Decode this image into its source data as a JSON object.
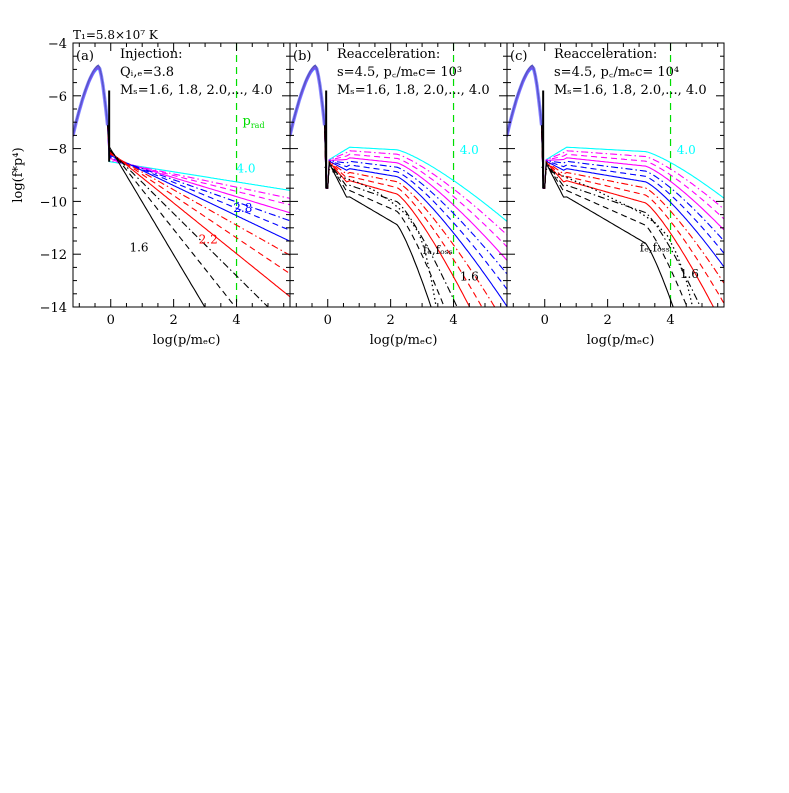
{
  "figure": {
    "top_label": "T₁=5.8×10⁷ K",
    "ylabel": "log(f*p⁴)",
    "colors": {
      "cyan": "#00ffff",
      "magenta": "#ff00ff",
      "blue": "#0000ff",
      "red": "#ff0000",
      "black": "#000000",
      "green": "#00dd00"
    }
  },
  "chart_data": [
    {
      "type": "line",
      "panel_label": "(a)",
      "title_line1": "Injection:",
      "title_line2": "Qᵢ,ₑ=3.8",
      "title_line3": "Mₛ=1.6, 1.8, 2.0,..., 4.0",
      "xlabel": "log(p/mₑc)",
      "xlim": [
        -1.2,
        5.7
      ],
      "ylim": [
        -14,
        -4
      ],
      "x_ticks": [
        0,
        2,
        4
      ],
      "y_ticks": [
        -14,
        -12,
        -10,
        -8,
        -6,
        -4
      ],
      "vline_x": 4,
      "vline_label": "p_rad",
      "annotations": [
        {
          "text": "4.0",
          "x": 4.3,
          "y": -8.9,
          "color": "cyan"
        },
        {
          "text": "2.8",
          "x": 4.2,
          "y": -10.4,
          "color": "blue"
        },
        {
          "text": "2.2",
          "x": 3.1,
          "y": -11.6,
          "color": "red"
        },
        {
          "text": "1.6",
          "x": 0.9,
          "y": -11.9,
          "color": "black"
        }
      ],
      "series": [
        {
          "mach": 4.0,
          "color": "cyan",
          "style": "solid",
          "slope": -0.19
        },
        {
          "mach": 3.8,
          "color": "magenta",
          "style": "dashdot",
          "slope": -0.25
        },
        {
          "mach": 3.6,
          "color": "magenta",
          "style": "dashed",
          "slope": -0.3
        },
        {
          "mach": 3.4,
          "color": "magenta",
          "style": "solid",
          "slope": -0.36
        },
        {
          "mach": 3.2,
          "color": "blue",
          "style": "dashdot",
          "slope": -0.42
        },
        {
          "mach": 3.0,
          "color": "blue",
          "style": "dashed",
          "slope": -0.49
        },
        {
          "mach": 2.8,
          "color": "blue",
          "style": "solid",
          "slope": -0.57
        },
        {
          "mach": 2.6,
          "color": "red",
          "style": "dashdot",
          "slope": -0.67
        },
        {
          "mach": 2.4,
          "color": "red",
          "style": "dashed",
          "slope": -0.8
        },
        {
          "mach": 2.2,
          "color": "red",
          "style": "solid",
          "slope": -0.96
        },
        {
          "mach": 2.0,
          "color": "black",
          "style": "dashdot",
          "slope": -1.18
        },
        {
          "mach": 1.8,
          "color": "black",
          "style": "dashed",
          "slope": -1.5
        },
        {
          "mach": 1.6,
          "color": "black",
          "style": "solid",
          "slope": -2.0
        }
      ]
    },
    {
      "type": "line",
      "panel_label": "(b)",
      "title_line1": "Reacceleration:",
      "title_line2": "s=4.5,  p꜀/mₑc= 10³",
      "title_line3": "Mₛ=1.6, 1.8, 2.0,..., 4.0",
      "xlabel": "log(p/mₑc)",
      "xlim": [
        -1.2,
        5.7
      ],
      "ylim": [
        -14,
        -4
      ],
      "x_ticks": [
        0,
        2,
        4
      ],
      "y_ticks": [
        -14,
        -12,
        -10,
        -8,
        -6,
        -4
      ],
      "vline_x": 4,
      "cutoff_log_p": 3,
      "annotations": [
        {
          "text": "4.0",
          "x": 4.5,
          "y": -8.2,
          "color": "cyan"
        },
        {
          "text": "fₑ,fₒₛₛ",
          "x": 3.5,
          "y": -12.0,
          "color": "black"
        },
        {
          "text": "1.6",
          "x": 4.5,
          "y": -13.0,
          "color": "black"
        }
      ],
      "fossil_curve": [
        [
          -0.1,
          -8.7
        ],
        [
          0.5,
          -9.1
        ],
        [
          1.0,
          -9.3
        ],
        [
          1.5,
          -9.6
        ],
        [
          2.0,
          -10.0
        ],
        [
          2.5,
          -10.5
        ],
        [
          2.9,
          -11.2
        ],
        [
          3.1,
          -11.9
        ],
        [
          3.3,
          -13.0
        ],
        [
          3.45,
          -14.0
        ]
      ],
      "series": [
        {
          "mach": 4.0,
          "color": "cyan",
          "style": "solid",
          "slope": -0.19
        },
        {
          "mach": 3.8,
          "color": "magenta",
          "style": "dashdot",
          "slope": -0.25
        },
        {
          "mach": 3.6,
          "color": "magenta",
          "style": "dashed",
          "slope": -0.3
        },
        {
          "mach": 3.4,
          "color": "magenta",
          "style": "solid",
          "slope": -0.36
        },
        {
          "mach": 3.2,
          "color": "blue",
          "style": "dashdot",
          "slope": -0.42
        },
        {
          "mach": 3.0,
          "color": "blue",
          "style": "dashed",
          "slope": -0.49
        },
        {
          "mach": 2.8,
          "color": "blue",
          "style": "solid",
          "slope": -0.57
        },
        {
          "mach": 2.6,
          "color": "red",
          "style": "dashdot",
          "slope": -0.67
        },
        {
          "mach": 2.4,
          "color": "red",
          "style": "dashed",
          "slope": -0.8
        },
        {
          "mach": 2.2,
          "color": "red",
          "style": "solid",
          "slope": -0.96
        },
        {
          "mach": 2.0,
          "color": "black",
          "style": "dashdot",
          "slope": -1.18
        },
        {
          "mach": 1.8,
          "color": "black",
          "style": "dashed",
          "slope": -1.5
        },
        {
          "mach": 1.6,
          "color": "black",
          "style": "solid",
          "slope": -2.0
        }
      ]
    },
    {
      "type": "line",
      "panel_label": "(c)",
      "title_line1": "Reacceleration:",
      "title_line2": "s=4.5,  p꜀/mₑc= 10⁴",
      "title_line3": "Mₛ=1.6, 1.8, 2.0,..., 4.0",
      "xlabel": "log(p/mₑc)",
      "xlim": [
        -1.2,
        5.7
      ],
      "ylim": [
        -14,
        -4
      ],
      "x_ticks": [
        0,
        2,
        4
      ],
      "y_ticks": [
        -14,
        -12,
        -10,
        -8,
        -6,
        -4
      ],
      "vline_x": 4,
      "cutoff_log_p": 4,
      "annotations": [
        {
          "text": "4.0",
          "x": 4.5,
          "y": -8.2,
          "color": "cyan"
        },
        {
          "text": "fₑ,fₒₛₛ",
          "x": 3.5,
          "y": -11.9,
          "color": "black"
        },
        {
          "text": "1.6",
          "x": 4.6,
          "y": -12.9,
          "color": "black"
        }
      ],
      "fossil_curve": [
        [
          -0.1,
          -8.7
        ],
        [
          0.5,
          -9.0
        ],
        [
          1.0,
          -9.25
        ],
        [
          1.5,
          -9.5
        ],
        [
          2.0,
          -9.8
        ],
        [
          2.5,
          -10.1
        ],
        [
          3.0,
          -10.4
        ],
        [
          3.5,
          -10.8
        ],
        [
          3.9,
          -11.3
        ],
        [
          4.2,
          -12.0
        ],
        [
          4.5,
          -13.0
        ],
        [
          4.7,
          -14.0
        ]
      ],
      "series": [
        {
          "mach": 4.0,
          "color": "cyan",
          "style": "solid",
          "slope": -0.19
        },
        {
          "mach": 3.8,
          "color": "magenta",
          "style": "dashdot",
          "slope": -0.25
        },
        {
          "mach": 3.6,
          "color": "magenta",
          "style": "dashed",
          "slope": -0.3
        },
        {
          "mach": 3.4,
          "color": "magenta",
          "style": "solid",
          "slope": -0.36
        },
        {
          "mach": 3.2,
          "color": "blue",
          "style": "dashdot",
          "slope": -0.42
        },
        {
          "mach": 3.0,
          "color": "blue",
          "style": "dashed",
          "slope": -0.49
        },
        {
          "mach": 2.8,
          "color": "blue",
          "style": "solid",
          "slope": -0.57
        },
        {
          "mach": 2.6,
          "color": "red",
          "style": "dashdot",
          "slope": -0.67
        },
        {
          "mach": 2.4,
          "color": "red",
          "style": "dashed",
          "slope": -0.8
        },
        {
          "mach": 2.2,
          "color": "red",
          "style": "solid",
          "slope": -0.96
        },
        {
          "mach": 2.0,
          "color": "black",
          "style": "dashdot",
          "slope": -1.18
        },
        {
          "mach": 1.8,
          "color": "black",
          "style": "dashed",
          "slope": -1.5
        },
        {
          "mach": 1.6,
          "color": "black",
          "style": "solid",
          "slope": -2.0
        }
      ]
    }
  ]
}
